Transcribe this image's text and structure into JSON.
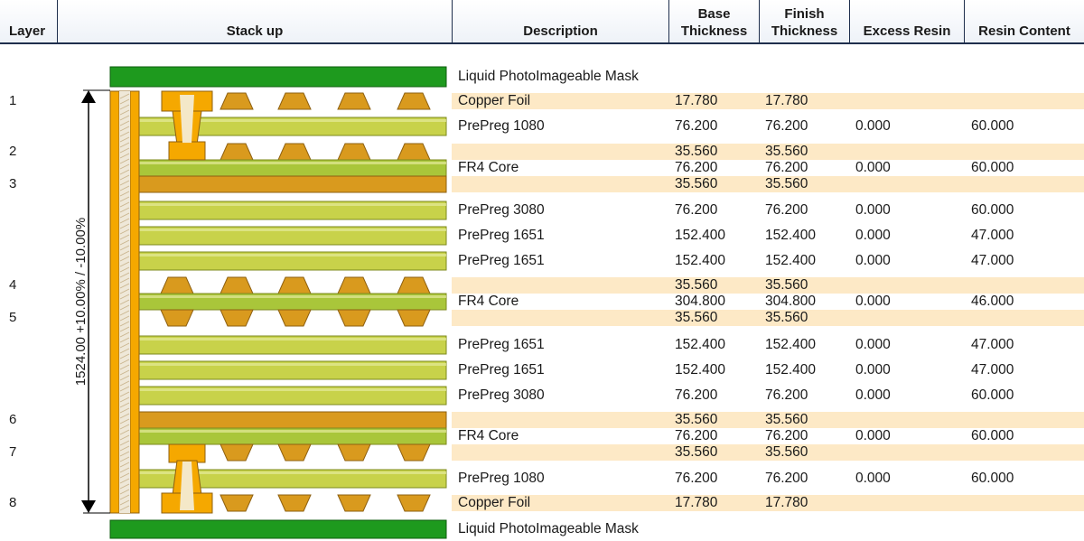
{
  "headers": {
    "layer": "Layer",
    "stackup": "Stack up",
    "description": "Description",
    "base_thickness": [
      "Base",
      "Thickness"
    ],
    "finish_thickness": [
      "Finish",
      "Thickness"
    ],
    "excess_resin": "Excess Resin",
    "resin_content": "Resin Content"
  },
  "total_thickness_label": "1524.00 +10.00% / -10.00%",
  "colors": {
    "mask": "#1e9a1e",
    "copper": "#d99a1e",
    "copper_via": "#f5a800",
    "prepreg": "#c8d24a",
    "core": "#a9c63a",
    "highlight_row": "#fde9c6"
  },
  "rows": [
    {
      "kind": "mask",
      "layer": "",
      "desc": "Liquid PhotoImageable Mask",
      "base": "",
      "finish": "",
      "excess": "",
      "resin": ""
    },
    {
      "kind": "copper",
      "layer": "1",
      "desc": "Copper Foil",
      "base": "17.780",
      "finish": "17.780",
      "excess": "",
      "resin": ""
    },
    {
      "kind": "prepreg",
      "layer": "",
      "desc": "PrePreg 1080",
      "base": "76.200",
      "finish": "76.200",
      "excess": "0.000",
      "resin": "60.000"
    },
    {
      "kind": "copper",
      "layer": "2",
      "desc": "",
      "base": "35.560",
      "finish": "35.560",
      "excess": "",
      "resin": ""
    },
    {
      "kind": "core",
      "layer": "",
      "desc": "FR4 Core",
      "base": "76.200",
      "finish": "76.200",
      "excess": "0.000",
      "resin": "60.000"
    },
    {
      "kind": "copper",
      "layer": "3",
      "desc": "",
      "base": "35.560",
      "finish": "35.560",
      "excess": "",
      "resin": ""
    },
    {
      "kind": "prepreg",
      "layer": "",
      "desc": "PrePreg 3080",
      "base": "76.200",
      "finish": "76.200",
      "excess": "0.000",
      "resin": "60.000"
    },
    {
      "kind": "prepreg",
      "layer": "",
      "desc": "PrePreg 1651",
      "base": "152.400",
      "finish": "152.400",
      "excess": "0.000",
      "resin": "47.000"
    },
    {
      "kind": "prepreg",
      "layer": "",
      "desc": "PrePreg 1651",
      "base": "152.400",
      "finish": "152.400",
      "excess": "0.000",
      "resin": "47.000"
    },
    {
      "kind": "copper",
      "layer": "4",
      "desc": "",
      "base": "35.560",
      "finish": "35.560",
      "excess": "",
      "resin": ""
    },
    {
      "kind": "core",
      "layer": "",
      "desc": "FR4 Core",
      "base": "304.800",
      "finish": "304.800",
      "excess": "0.000",
      "resin": "46.000"
    },
    {
      "kind": "copper",
      "layer": "5",
      "desc": "",
      "base": "35.560",
      "finish": "35.560",
      "excess": "",
      "resin": ""
    },
    {
      "kind": "prepreg",
      "layer": "",
      "desc": "PrePreg 1651",
      "base": "152.400",
      "finish": "152.400",
      "excess": "0.000",
      "resin": "47.000"
    },
    {
      "kind": "prepreg",
      "layer": "",
      "desc": "PrePreg 1651",
      "base": "152.400",
      "finish": "152.400",
      "excess": "0.000",
      "resin": "47.000"
    },
    {
      "kind": "prepreg",
      "layer": "",
      "desc": "PrePreg 3080",
      "base": "76.200",
      "finish": "76.200",
      "excess": "0.000",
      "resin": "60.000"
    },
    {
      "kind": "copper",
      "layer": "6",
      "desc": "",
      "base": "35.560",
      "finish": "35.560",
      "excess": "",
      "resin": ""
    },
    {
      "kind": "core",
      "layer": "",
      "desc": "FR4 Core",
      "base": "76.200",
      "finish": "76.200",
      "excess": "0.000",
      "resin": "60.000"
    },
    {
      "kind": "copper",
      "layer": "7",
      "desc": "",
      "base": "35.560",
      "finish": "35.560",
      "excess": "",
      "resin": ""
    },
    {
      "kind": "prepreg",
      "layer": "",
      "desc": "PrePreg 1080",
      "base": "76.200",
      "finish": "76.200",
      "excess": "0.000",
      "resin": "60.000"
    },
    {
      "kind": "copper",
      "layer": "8",
      "desc": "Copper Foil",
      "base": "17.780",
      "finish": "17.780",
      "excess": "",
      "resin": ""
    },
    {
      "kind": "mask",
      "layer": "",
      "desc": "Liquid PhotoImageable Mask",
      "base": "",
      "finish": "",
      "excess": "",
      "resin": ""
    }
  ]
}
